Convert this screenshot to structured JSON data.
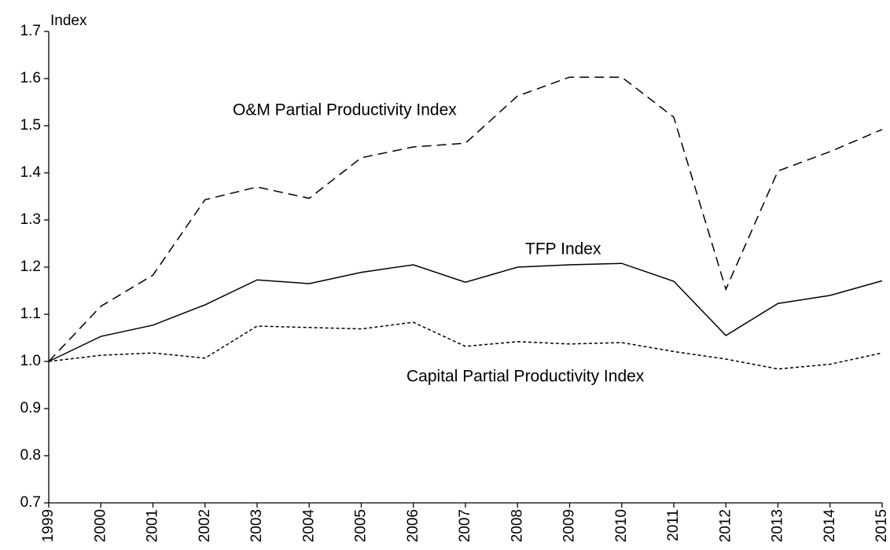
{
  "chart_data": {
    "type": "line",
    "y_label": "Index",
    "categories": [
      "1999",
      "2000",
      "2001",
      "2002",
      "2003",
      "2004",
      "2005",
      "2006",
      "2007",
      "2008",
      "2009",
      "2010",
      "2011",
      "2012",
      "2013",
      "2014",
      "2015"
    ],
    "series": [
      {
        "name": "O&M Partial Productivity Index",
        "color": "#000000",
        "dash": "12,7",
        "values": [
          1.0,
          1.117,
          1.183,
          1.343,
          1.37,
          1.346,
          1.432,
          1.455,
          1.463,
          1.563,
          1.603,
          1.603,
          1.518,
          1.153,
          1.404,
          1.445,
          1.492
        ]
      },
      {
        "name": "TFP Index",
        "color": "#000000",
        "dash": "none",
        "values": [
          1.0,
          1.053,
          1.077,
          1.12,
          1.173,
          1.165,
          1.189,
          1.205,
          1.168,
          1.2,
          1.205,
          1.208,
          1.17,
          1.055,
          1.123,
          1.14,
          1.171
        ]
      },
      {
        "name": "Capital Partial Productivity Index",
        "color": "#000000",
        "dash": "4,3",
        "values": [
          1.0,
          1.013,
          1.018,
          1.007,
          1.075,
          1.072,
          1.069,
          1.083,
          1.032,
          1.042,
          1.037,
          1.04,
          1.021,
          1.005,
          0.984,
          0.994,
          1.018
        ]
      }
    ],
    "ylim": [
      0.7,
      1.7
    ],
    "yticks": [
      0.7,
      0.8,
      0.9,
      {
        "value": 1,
        "label": "1.0"
      },
      1.1,
      1.2,
      1.3,
      1.4,
      1.5,
      1.6,
      1.7
    ],
    "grid": false
  }
}
